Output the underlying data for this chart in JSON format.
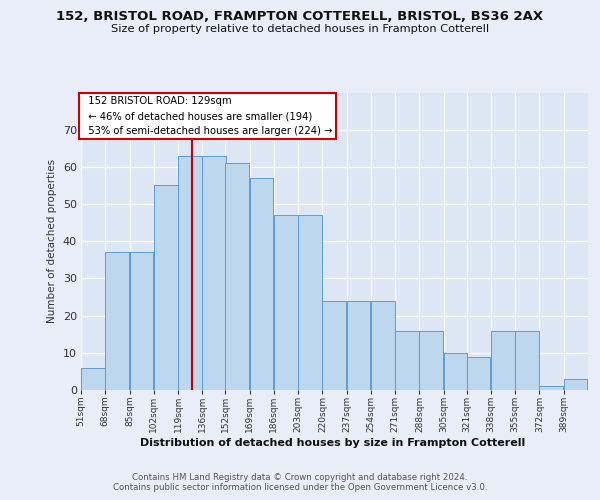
{
  "title1": "152, BRISTOL ROAD, FRAMPTON COTTERELL, BRISTOL, BS36 2AX",
  "title2": "Size of property relative to detached houses in Frampton Cotterell",
  "xlabel": "Distribution of detached houses by size in Frampton Cotterell",
  "ylabel": "Number of detached properties",
  "footer1": "Contains HM Land Registry data © Crown copyright and database right 2024.",
  "footer2": "Contains public sector information licensed under the Open Government Licence v3.0.",
  "annotation_title": "152 BRISTOL ROAD: 129sqm",
  "annotation_line1": "← 46% of detached houses are smaller (194)",
  "annotation_line2": "53% of semi-detached houses are larger (224) →",
  "bar_values": [
    6,
    37,
    37,
    55,
    63,
    63,
    61,
    57,
    47,
    47,
    24,
    24,
    24,
    16,
    16,
    10,
    9,
    16,
    16,
    1,
    3
  ],
  "bin_labels": [
    "51sqm",
    "68sqm",
    "85sqm",
    "102sqm",
    "119sqm",
    "136sqm",
    "152sqm",
    "169sqm",
    "186sqm",
    "203sqm",
    "220sqm",
    "237sqm",
    "254sqm",
    "271sqm",
    "288sqm",
    "305sqm",
    "321sqm",
    "338sqm",
    "355sqm",
    "372sqm",
    "389sqm"
  ],
  "bin_edges": [
    51,
    68,
    85,
    102,
    119,
    136,
    152,
    169,
    186,
    203,
    220,
    237,
    254,
    271,
    288,
    305,
    321,
    338,
    355,
    372,
    389
  ],
  "bar_color": "#bdd7ee",
  "bar_edgecolor": "#5b9bd5",
  "vline_x": 129,
  "vline_color": "#cc0000",
  "ylim": [
    0,
    80
  ],
  "yticks": [
    0,
    10,
    20,
    30,
    40,
    50,
    60,
    70
  ],
  "background_color": "#dce6f5",
  "grid_color": "#ffffff",
  "fig_bg": "#e8edf8",
  "annotation_box_edgecolor": "#cc0000",
  "annotation_box_facecolor": "#ffffff",
  "ann_title_fontsize": 7.5,
  "ann_body_fontsize": 7.5
}
